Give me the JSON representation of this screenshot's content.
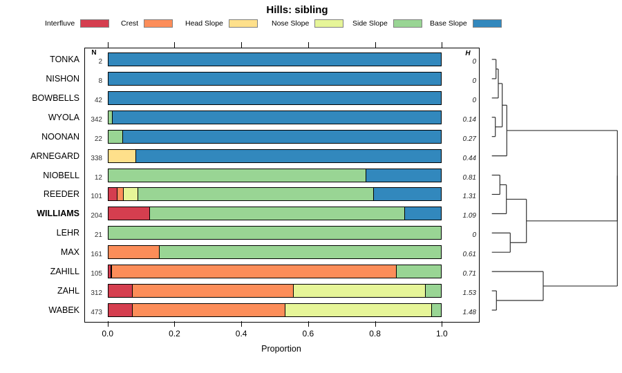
{
  "title": "Hills: sibling",
  "legend": {
    "items": [
      {
        "label": "Interfluve",
        "part": "interfluve"
      },
      {
        "label": "Crest",
        "part": "crest"
      },
      {
        "label": "Head Slope",
        "part": "head_slope"
      },
      {
        "label": "Nose Slope",
        "part": "nose_slope"
      },
      {
        "label": "Side Slope",
        "part": "side_slope"
      },
      {
        "label": "Base Slope",
        "part": "base_slope"
      }
    ]
  },
  "columns": {
    "n_header": "N",
    "h_header": "H"
  },
  "chart_data": {
    "type": "bar",
    "subtype": "horizontal_stacked_proportion_with_dendrogram",
    "title": "Hills: sibling",
    "xlabel": "Proportion",
    "xlim": [
      0,
      1
    ],
    "xticks": [
      0,
      0.2,
      0.4,
      0.6,
      0.8,
      1.0
    ],
    "xtick_labels": [
      "0.0",
      "0.2",
      "0.4",
      "0.6",
      "0.8",
      "1.0"
    ],
    "palette": {
      "interfluve": "#d53e4f",
      "crest": "#fc8d59",
      "head_slope": "#fee08b",
      "nose_slope": "#e6f598",
      "side_slope": "#99d594",
      "base_slope": "#3288bd"
    },
    "rows": [
      {
        "label": "TONKA",
        "n": "2",
        "h": "0",
        "bold": false,
        "segments": [
          {
            "part": "base_slope",
            "value": 1.0
          }
        ]
      },
      {
        "label": "NISHON",
        "n": "8",
        "h": "0",
        "bold": false,
        "segments": [
          {
            "part": "base_slope",
            "value": 1.0
          }
        ]
      },
      {
        "label": "BOWBELLS",
        "n": "42",
        "h": "0",
        "bold": false,
        "segments": [
          {
            "part": "base_slope",
            "value": 1.0
          }
        ]
      },
      {
        "label": "WYOLA",
        "n": "342",
        "h": "0.14",
        "bold": false,
        "segments": [
          {
            "part": "side_slope",
            "value": 0.016
          },
          {
            "part": "base_slope",
            "value": 0.984
          }
        ]
      },
      {
        "label": "NOONAN",
        "n": "22",
        "h": "0.27",
        "bold": false,
        "segments": [
          {
            "part": "side_slope",
            "value": 0.046
          },
          {
            "part": "base_slope",
            "value": 0.954
          }
        ]
      },
      {
        "label": "ARNEGARD",
        "n": "338",
        "h": "0.44",
        "bold": false,
        "segments": [
          {
            "part": "head_slope",
            "value": 0.085
          },
          {
            "part": "base_slope",
            "value": 0.915
          }
        ]
      },
      {
        "label": "NIOBELL",
        "n": "12",
        "h": "0.81",
        "bold": false,
        "segments": [
          {
            "part": "side_slope",
            "value": 0.775
          },
          {
            "part": "base_slope",
            "value": 0.225
          }
        ]
      },
      {
        "label": "REEDER",
        "n": "101",
        "h": "1.31",
        "bold": false,
        "segments": [
          {
            "part": "interfluve",
            "value": 0.03
          },
          {
            "part": "crest",
            "value": 0.018
          },
          {
            "part": "nose_slope",
            "value": 0.043
          },
          {
            "part": "side_slope",
            "value": 0.705
          },
          {
            "part": "base_slope",
            "value": 0.204
          }
        ]
      },
      {
        "label": "WILLIAMS",
        "n": "204",
        "h": "1.09",
        "bold": true,
        "segments": [
          {
            "part": "interfluve",
            "value": 0.127
          },
          {
            "part": "side_slope",
            "value": 0.763
          },
          {
            "part": "base_slope",
            "value": 0.11
          }
        ]
      },
      {
        "label": "LEHR",
        "n": "21",
        "h": "0",
        "bold": false,
        "segments": [
          {
            "part": "side_slope",
            "value": 1.0
          }
        ]
      },
      {
        "label": "MAX",
        "n": "161",
        "h": "0.61",
        "bold": false,
        "segments": [
          {
            "part": "crest",
            "value": 0.155
          },
          {
            "part": "side_slope",
            "value": 0.845
          }
        ]
      },
      {
        "label": "ZAHILL",
        "n": "105",
        "h": "0.71",
        "bold": false,
        "segments": [
          {
            "part": "interfluve",
            "value": 0.012
          },
          {
            "part": "crest",
            "value": 0.853
          },
          {
            "part": "side_slope",
            "value": 0.135
          }
        ]
      },
      {
        "label": "ZAHL",
        "n": "312",
        "h": "1.53",
        "bold": false,
        "segments": [
          {
            "part": "interfluve",
            "value": 0.076
          },
          {
            "part": "crest",
            "value": 0.48
          },
          {
            "part": "nose_slope",
            "value": 0.396
          },
          {
            "part": "side_slope",
            "value": 0.048
          }
        ]
      },
      {
        "label": "WABEK",
        "n": "473",
        "h": "1.48",
        "bold": false,
        "segments": [
          {
            "part": "interfluve",
            "value": 0.076
          },
          {
            "part": "crest",
            "value": 0.457
          },
          {
            "part": "nose_slope",
            "value": 0.437
          },
          {
            "part": "side_slope",
            "value": 0.03
          }
        ]
      }
    ],
    "dendrogram": {
      "note": "h = merge height in px offset from leaf baseline; leaves keyed by row label",
      "tree": {
        "h": 181.6,
        "children": [
          {
            "h": 181.6,
            "children": [
              {
                "h": 21.6,
                "children": [
                  {
                    "h": 15,
                    "children": [
                      {
                        "h": 9.3,
                        "children": [
                          {
                            "h": 6,
                            "children": [
                              {
                                "leaf": "TONKA"
                              },
                              {
                                "leaf": "NISHON"
                              }
                            ]
                          },
                          {
                            "leaf": "BOWBELLS"
                          }
                        ]
                      },
                      {
                        "h": 5,
                        "children": [
                          {
                            "leaf": "WYOLA"
                          },
                          {
                            "leaf": "NOONAN"
                          }
                        ]
                      }
                    ]
                  },
                  {
                    "leaf": "ARNEGARD"
                  }
                ]
              },
              {
                "h": 50,
                "children": [
                  {
                    "h": 21,
                    "children": [
                      {
                        "h": 11.6,
                        "children": [
                          {
                            "leaf": "NIOBELL"
                          },
                          {
                            "leaf": "REEDER"
                          }
                        ]
                      },
                      {
                        "leaf": "WILLIAMS"
                      }
                    ]
                  },
                  {
                    "h": 26.6,
                    "children": [
                      {
                        "leaf": "LEHR"
                      },
                      {
                        "leaf": "MAX"
                      }
                    ]
                  }
                ]
              }
            ]
          },
          {
            "h": 74.3,
            "children": [
              {
                "leaf": "ZAHILL"
              },
              {
                "h": 6.6,
                "children": [
                  {
                    "leaf": "ZAHL"
                  },
                  {
                    "leaf": "WABEK"
                  }
                ]
              }
            ]
          }
        ]
      }
    }
  }
}
